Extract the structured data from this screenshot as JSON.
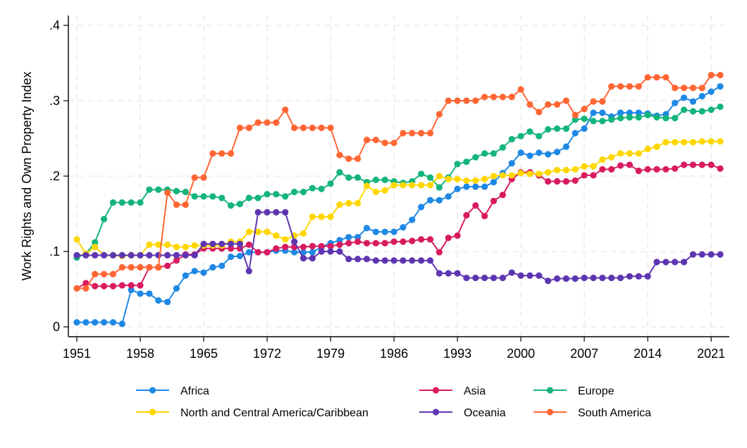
{
  "chart_data": {
    "type": "line",
    "title": "",
    "xlabel": "",
    "ylabel": "Work Rights and Own Property Index",
    "xlim": [
      1951,
      2022
    ],
    "ylim": [
      0,
      0.4
    ],
    "x_ticks": [
      1951,
      1958,
      1965,
      1972,
      1979,
      1986,
      1993,
      2000,
      2007,
      2014,
      2021
    ],
    "x_tick_labels": [
      "1951",
      "1958",
      "1965",
      "1972",
      "1979",
      "1986",
      "1993",
      "2000",
      "2007",
      "2014",
      "2021"
    ],
    "y_ticks": [
      0,
      0.1,
      0.2,
      0.3,
      0.4
    ],
    "y_tick_labels": [
      "0",
      ".1",
      ".2",
      ".3",
      ".4"
    ],
    "grid": true,
    "legend_position": "bottom",
    "x": [
      1951,
      1952,
      1953,
      1954,
      1955,
      1956,
      1957,
      1958,
      1959,
      1960,
      1961,
      1962,
      1963,
      1964,
      1965,
      1966,
      1967,
      1968,
      1969,
      1970,
      1971,
      1972,
      1973,
      1974,
      1975,
      1976,
      1977,
      1978,
      1979,
      1980,
      1981,
      1982,
      1983,
      1984,
      1985,
      1986,
      1987,
      1988,
      1989,
      1990,
      1991,
      1992,
      1993,
      1994,
      1995,
      1996,
      1997,
      1998,
      1999,
      2000,
      2001,
      2002,
      2003,
      2004,
      2005,
      2006,
      2007,
      2008,
      2009,
      2010,
      2011,
      2012,
      2013,
      2014,
      2015,
      2016,
      2017,
      2018,
      2019,
      2020,
      2021,
      2022
    ],
    "series": [
      {
        "name": "Africa",
        "color": "#1E88E5",
        "values": [
          0.006,
          0.006,
          0.006,
          0.006,
          0.006,
          0.004,
          0.049,
          0.044,
          0.044,
          0.035,
          0.033,
          0.051,
          0.068,
          0.074,
          0.072,
          0.079,
          0.081,
          0.093,
          0.094,
          0.099,
          0.099,
          0.099,
          0.101,
          0.101,
          0.099,
          0.099,
          0.099,
          0.106,
          0.111,
          0.115,
          0.119,
          0.119,
          0.131,
          0.126,
          0.126,
          0.126,
          0.132,
          0.142,
          0.159,
          0.168,
          0.168,
          0.173,
          0.183,
          0.186,
          0.186,
          0.186,
          0.192,
          0.204,
          0.217,
          0.231,
          0.227,
          0.231,
          0.229,
          0.232,
          0.239,
          0.257,
          0.263,
          0.284,
          0.284,
          0.279,
          0.284,
          0.284,
          0.284,
          0.283,
          0.28,
          0.282,
          0.297,
          0.304,
          0.299,
          0.306,
          0.312,
          0.319
        ]
      },
      {
        "name": "Asia",
        "color": "#D81B60",
        "values": [
          0.051,
          0.058,
          0.054,
          0.054,
          0.054,
          0.055,
          0.055,
          0.055,
          0.079,
          0.079,
          0.081,
          0.088,
          0.096,
          0.096,
          0.104,
          0.104,
          0.104,
          0.104,
          0.104,
          0.109,
          0.099,
          0.099,
          0.104,
          0.106,
          0.106,
          0.106,
          0.107,
          0.107,
          0.107,
          0.109,
          0.111,
          0.113,
          0.111,
          0.111,
          0.111,
          0.113,
          0.113,
          0.114,
          0.116,
          0.116,
          0.099,
          0.118,
          0.121,
          0.148,
          0.161,
          0.147,
          0.167,
          0.175,
          0.196,
          0.205,
          0.205,
          0.201,
          0.193,
          0.193,
          0.193,
          0.194,
          0.201,
          0.201,
          0.209,
          0.209,
          0.214,
          0.215,
          0.207,
          0.209,
          0.209,
          0.209,
          0.21,
          0.215,
          0.215,
          0.215,
          0.215,
          0.21
        ]
      },
      {
        "name": "Europe",
        "color": "#13B57A",
        "values": [
          0.092,
          0.097,
          0.112,
          0.143,
          0.165,
          0.165,
          0.165,
          0.165,
          0.182,
          0.182,
          0.182,
          0.18,
          0.179,
          0.173,
          0.173,
          0.173,
          0.171,
          0.161,
          0.163,
          0.171,
          0.171,
          0.176,
          0.176,
          0.173,
          0.179,
          0.179,
          0.184,
          0.183,
          0.19,
          0.205,
          0.198,
          0.198,
          0.192,
          0.195,
          0.195,
          0.193,
          0.191,
          0.193,
          0.203,
          0.198,
          0.185,
          0.198,
          0.216,
          0.219,
          0.225,
          0.23,
          0.23,
          0.238,
          0.249,
          0.253,
          0.259,
          0.253,
          0.262,
          0.263,
          0.263,
          0.275,
          0.276,
          0.273,
          0.273,
          0.275,
          0.277,
          0.278,
          0.278,
          0.281,
          0.278,
          0.277,
          0.277,
          0.288,
          0.286,
          0.286,
          0.288,
          0.292
        ]
      },
      {
        "name": "North and Central America/Caribbean",
        "color": "#FFD700",
        "values": [
          0.116,
          0.097,
          0.106,
          0.095,
          0.095,
          0.094,
          0.095,
          0.095,
          0.109,
          0.109,
          0.109,
          0.106,
          0.106,
          0.108,
          0.108,
          0.108,
          0.108,
          0.113,
          0.113,
          0.126,
          0.126,
          0.126,
          0.121,
          0.116,
          0.121,
          0.124,
          0.146,
          0.146,
          0.146,
          0.162,
          0.164,
          0.164,
          0.187,
          0.179,
          0.181,
          0.188,
          0.188,
          0.188,
          0.188,
          0.188,
          0.2,
          0.196,
          0.196,
          0.194,
          0.194,
          0.196,
          0.2,
          0.201,
          0.201,
          0.204,
          0.203,
          0.203,
          0.205,
          0.208,
          0.208,
          0.209,
          0.213,
          0.213,
          0.222,
          0.225,
          0.23,
          0.23,
          0.23,
          0.236,
          0.239,
          0.245,
          0.245,
          0.245,
          0.245,
          0.246,
          0.246,
          0.246
        ]
      },
      {
        "name": "Oceania",
        "color": "#5E35B1",
        "values": [
          0.095,
          0.095,
          0.095,
          0.095,
          0.095,
          0.095,
          0.095,
          0.095,
          0.095,
          0.095,
          0.095,
          0.095,
          0.095,
          0.095,
          0.11,
          0.11,
          0.11,
          0.11,
          0.11,
          0.074,
          0.152,
          0.152,
          0.152,
          0.152,
          0.113,
          0.091,
          0.091,
          0.1,
          0.1,
          0.1,
          0.09,
          0.09,
          0.09,
          0.088,
          0.088,
          0.088,
          0.088,
          0.088,
          0.088,
          0.088,
          0.071,
          0.071,
          0.071,
          0.065,
          0.065,
          0.065,
          0.065,
          0.065,
          0.072,
          0.068,
          0.068,
          0.068,
          0.061,
          0.064,
          0.064,
          0.064,
          0.065,
          0.065,
          0.065,
          0.065,
          0.065,
          0.067,
          0.067,
          0.067,
          0.086,
          0.086,
          0.086,
          0.086,
          0.096,
          0.096,
          0.096,
          0.096
        ]
      },
      {
        "name": "South America",
        "color": "#FF6633",
        "values": [
          0.051,
          0.051,
          0.07,
          0.07,
          0.07,
          0.079,
          0.079,
          0.079,
          0.079,
          0.079,
          0.178,
          0.162,
          0.162,
          0.198,
          0.198,
          0.23,
          0.23,
          0.23,
          0.264,
          0.264,
          0.271,
          0.271,
          0.271,
          0.288,
          0.264,
          0.264,
          0.264,
          0.264,
          0.264,
          0.228,
          0.223,
          0.223,
          0.248,
          0.248,
          0.244,
          0.244,
          0.257,
          0.257,
          0.257,
          0.257,
          0.282,
          0.3,
          0.3,
          0.3,
          0.3,
          0.305,
          0.305,
          0.305,
          0.305,
          0.315,
          0.295,
          0.285,
          0.295,
          0.295,
          0.3,
          0.281,
          0.289,
          0.299,
          0.299,
          0.319,
          0.319,
          0.319,
          0.319,
          0.331,
          0.331,
          0.331,
          0.317,
          0.317,
          0.317,
          0.317,
          0.334,
          0.334
        ]
      }
    ],
    "legend_order": [
      0,
      1,
      2,
      3,
      4,
      5
    ]
  }
}
